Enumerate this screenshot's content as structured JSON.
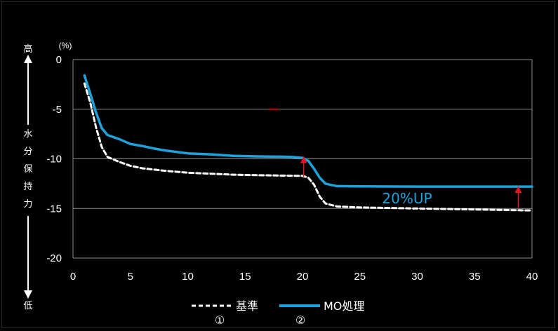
{
  "axis_side": {
    "high": "高",
    "low": "低",
    "label_chars": [
      "水",
      "分",
      "保",
      "持",
      "力"
    ]
  },
  "chart_data": {
    "type": "line",
    "title": "",
    "xlabel": "",
    "ylabel": "水分保持力",
    "unit_label": "(%)",
    "xlim": [
      0,
      40
    ],
    "ylim": [
      -20,
      0
    ],
    "x_ticks": [
      "0",
      "5",
      "10",
      "15",
      "20",
      "25",
      "30",
      "35",
      "40"
    ],
    "y_ticks": [
      "0",
      "-5",
      "-10",
      "-15",
      "-20"
    ],
    "grid": true,
    "legend_position": "bottom",
    "annotation": "20%UP",
    "series": [
      {
        "name": "基準",
        "marker": "①",
        "style": "dashed",
        "color": "#ffffff",
        "points": [
          [
            1,
            -2.4
          ],
          [
            1.5,
            -4.3
          ],
          [
            2,
            -6.8
          ],
          [
            2.5,
            -8.8
          ],
          [
            3,
            -9.8
          ],
          [
            4,
            -10.3
          ],
          [
            5,
            -10.7
          ],
          [
            6,
            -10.95
          ],
          [
            8,
            -11.2
          ],
          [
            10,
            -11.4
          ],
          [
            12,
            -11.5
          ],
          [
            14,
            -11.6
          ],
          [
            16,
            -11.65
          ],
          [
            18,
            -11.68
          ],
          [
            20,
            -11.72
          ],
          [
            20.5,
            -11.9
          ],
          [
            21,
            -12.6
          ],
          [
            21.5,
            -13.8
          ],
          [
            22,
            -14.5
          ],
          [
            23,
            -14.8
          ],
          [
            25,
            -14.9
          ],
          [
            30,
            -15.0
          ],
          [
            35,
            -15.1
          ],
          [
            40,
            -15.2
          ]
        ]
      },
      {
        "name": "MO処理",
        "marker": "②",
        "style": "solid",
        "color": "#1ba3dd",
        "points": [
          [
            1,
            -1.6
          ],
          [
            1.5,
            -3.4
          ],
          [
            2,
            -5.3
          ],
          [
            2.5,
            -6.9
          ],
          [
            3,
            -7.6
          ],
          [
            3.5,
            -7.8
          ],
          [
            4,
            -8.0
          ],
          [
            5,
            -8.5
          ],
          [
            6,
            -8.7
          ],
          [
            7,
            -8.95
          ],
          [
            8,
            -9.15
          ],
          [
            10,
            -9.45
          ],
          [
            12,
            -9.55
          ],
          [
            14,
            -9.7
          ],
          [
            16,
            -9.75
          ],
          [
            18,
            -9.78
          ],
          [
            19,
            -9.8
          ],
          [
            20,
            -9.9
          ],
          [
            20.5,
            -10.2
          ],
          [
            21,
            -11.0
          ],
          [
            21.5,
            -11.9
          ],
          [
            22,
            -12.5
          ],
          [
            23,
            -12.75
          ],
          [
            25,
            -12.78
          ],
          [
            30,
            -12.8
          ],
          [
            35,
            -12.8
          ],
          [
            40,
            -12.8
          ]
        ]
      }
    ],
    "arrows": [
      {
        "x": 20.1,
        "from": -11.8,
        "to": -9.8
      },
      {
        "x": 38.8,
        "from": -14.9,
        "to": -12.8
      }
    ],
    "stray_mark": {
      "x": 17.5,
      "y": -5.0,
      "color": "#cc0000"
    }
  }
}
